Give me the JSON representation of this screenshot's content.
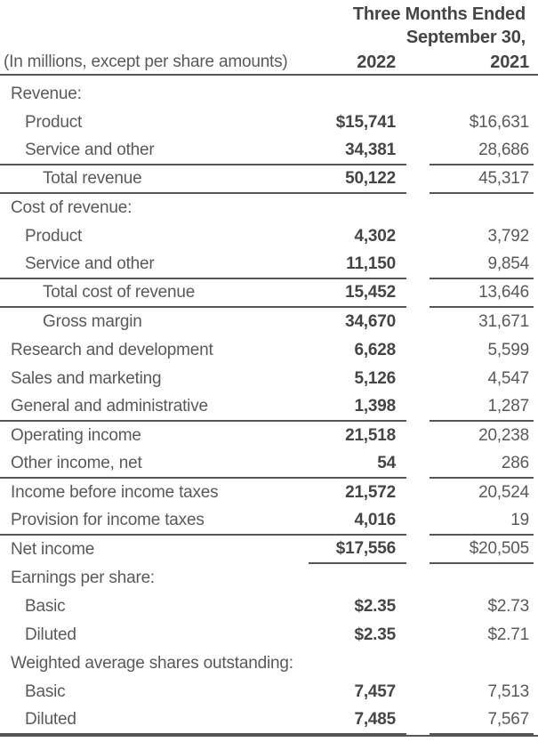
{
  "statement": {
    "header": {
      "period_line1": "Three Months Ended",
      "period_line2": "September 30,",
      "units_caption": "(In millions, except per share amounts)",
      "col_2022": "2022",
      "col_2021": "2021"
    },
    "rows": [
      {
        "label": "Revenue:",
        "section": true,
        "indent": 0,
        "v2022": "",
        "v2021": "",
        "separator": "none"
      },
      {
        "label": "Product",
        "section": false,
        "indent": 1,
        "v2022": "$15,741",
        "v2021": "$16,631",
        "separator": "none"
      },
      {
        "label": "Service and other",
        "section": false,
        "indent": 1,
        "v2022": "34,381",
        "v2021": "28,686",
        "separator": "full"
      },
      {
        "label": "Total revenue",
        "section": false,
        "indent": 2,
        "v2022": "50,122",
        "v2021": "45,317",
        "separator": "full"
      },
      {
        "label": "Cost of revenue:",
        "section": true,
        "indent": 0,
        "v2022": "",
        "v2021": "",
        "separator": "none"
      },
      {
        "label": "Product",
        "section": false,
        "indent": 1,
        "v2022": "4,302",
        "v2021": "3,792",
        "separator": "none"
      },
      {
        "label": "Service and other",
        "section": false,
        "indent": 1,
        "v2022": "11,150",
        "v2021": "9,854",
        "separator": "full"
      },
      {
        "label": "Total cost of revenue",
        "section": false,
        "indent": 2,
        "v2022": "15,452",
        "v2021": "13,646",
        "separator": "full"
      },
      {
        "label": "Gross margin",
        "section": false,
        "indent": 2,
        "v2022": "34,670",
        "v2021": "31,671",
        "separator": "none"
      },
      {
        "label": "Research and development",
        "section": false,
        "indent": 0,
        "v2022": "6,628",
        "v2021": "5,599",
        "separator": "none"
      },
      {
        "label": "Sales and marketing",
        "section": false,
        "indent": 0,
        "v2022": "5,126",
        "v2021": "4,547",
        "separator": "none"
      },
      {
        "label": "General and administrative",
        "section": false,
        "indent": 0,
        "v2022": "1,398",
        "v2021": "1,287",
        "separator": "full"
      },
      {
        "label": "Operating income",
        "section": false,
        "indent": 0,
        "v2022": "21,518",
        "v2021": "20,238",
        "separator": "none"
      },
      {
        "label": "Other income, net",
        "section": false,
        "indent": 0,
        "v2022": "54",
        "v2021": "286",
        "separator": "full"
      },
      {
        "label": "Income before income taxes",
        "section": false,
        "indent": 0,
        "v2022": "21,572",
        "v2021": "20,524",
        "separator": "none"
      },
      {
        "label": "Provision for income taxes",
        "section": false,
        "indent": 0,
        "v2022": "4,016",
        "v2021": "19",
        "separator": "full"
      },
      {
        "label": "Net income",
        "section": false,
        "indent": 0,
        "v2022": "$17,556",
        "v2021": "$20,505",
        "separator": "value"
      },
      {
        "label": "Earnings per share:",
        "section": true,
        "indent": 0,
        "v2022": "",
        "v2021": "",
        "separator": "none"
      },
      {
        "label": "Basic",
        "section": false,
        "indent": 1,
        "v2022": "$2.35",
        "v2021": "$2.73",
        "separator": "none"
      },
      {
        "label": "Diluted",
        "section": false,
        "indent": 1,
        "v2022": "$2.35",
        "v2021": "$2.71",
        "separator": "none"
      },
      {
        "label": "Weighted average shares outstanding:",
        "section": true,
        "indent": 0,
        "v2022": "",
        "v2021": "",
        "separator": "none"
      },
      {
        "label": "Basic",
        "section": false,
        "indent": 1,
        "v2022": "7,457",
        "v2021": "7,513",
        "separator": "none"
      },
      {
        "label": "Diluted",
        "section": false,
        "indent": 1,
        "v2022": "7,485",
        "v2021": "7,567",
        "separator": "full"
      }
    ],
    "colors": {
      "text": "#595959",
      "bold_text": "#454545",
      "rule": "#565656",
      "background": "#ffffff"
    }
  }
}
